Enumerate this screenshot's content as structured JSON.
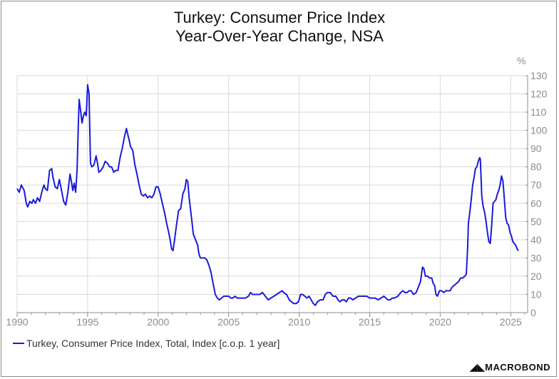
{
  "chart_data": {
    "type": "line",
    "title": "Turkey: Consumer Price Index",
    "subtitle": "Year-Over-Year Change, NSA",
    "ylabel": "%",
    "ylim": [
      0,
      130
    ],
    "yticks": [
      0,
      10,
      20,
      30,
      40,
      50,
      60,
      70,
      80,
      90,
      100,
      110,
      120,
      130
    ],
    "xlim": [
      1990,
      2026.2
    ],
    "xticks": [
      1990,
      1995,
      2000,
      2005,
      2010,
      2015,
      2020,
      2025
    ],
    "grid": true,
    "legend_position": "bottom-left",
    "series": [
      {
        "name": "Turkey, Consumer Price Index, Total, Index [c.o.p. 1 year]",
        "color": "#1a1adc",
        "points": [
          [
            1990.0,
            68
          ],
          [
            1990.15,
            66
          ],
          [
            1990.3,
            70
          ],
          [
            1990.5,
            67
          ],
          [
            1990.65,
            60
          ],
          [
            1990.75,
            58
          ],
          [
            1990.9,
            61
          ],
          [
            1991.05,
            60
          ],
          [
            1991.15,
            62
          ],
          [
            1991.3,
            60
          ],
          [
            1991.45,
            63
          ],
          [
            1991.6,
            61
          ],
          [
            1991.75,
            66
          ],
          [
            1991.9,
            70
          ],
          [
            1992.0,
            68
          ],
          [
            1992.15,
            67
          ],
          [
            1992.3,
            78
          ],
          [
            1992.45,
            79
          ],
          [
            1992.55,
            74
          ],
          [
            1992.7,
            69
          ],
          [
            1992.85,
            68
          ],
          [
            1993.0,
            73
          ],
          [
            1993.15,
            67
          ],
          [
            1993.3,
            61
          ],
          [
            1993.45,
            59
          ],
          [
            1993.6,
            66
          ],
          [
            1993.75,
            76
          ],
          [
            1993.85,
            72
          ],
          [
            1993.95,
            67
          ],
          [
            1994.05,
            71
          ],
          [
            1994.15,
            66
          ],
          [
            1994.25,
            78
          ],
          [
            1994.35,
            105
          ],
          [
            1994.4,
            117
          ],
          [
            1994.5,
            111
          ],
          [
            1994.6,
            104
          ],
          [
            1994.7,
            108
          ],
          [
            1994.8,
            110
          ],
          [
            1994.9,
            108
          ],
          [
            1995.0,
            125
          ],
          [
            1995.1,
            120
          ],
          [
            1995.2,
            82
          ],
          [
            1995.3,
            80
          ],
          [
            1995.45,
            81
          ],
          [
            1995.6,
            86
          ],
          [
            1995.7,
            82
          ],
          [
            1995.8,
            77
          ],
          [
            1995.95,
            78
          ],
          [
            1996.1,
            80
          ],
          [
            1996.25,
            83
          ],
          [
            1996.4,
            82
          ],
          [
            1996.55,
            80
          ],
          [
            1996.7,
            80
          ],
          [
            1996.85,
            77
          ],
          [
            1997.0,
            78
          ],
          [
            1997.15,
            78
          ],
          [
            1997.3,
            85
          ],
          [
            1997.45,
            90
          ],
          [
            1997.6,
            96
          ],
          [
            1997.75,
            101
          ],
          [
            1997.9,
            96
          ],
          [
            1998.05,
            91
          ],
          [
            1998.2,
            89
          ],
          [
            1998.35,
            81
          ],
          [
            1998.5,
            76
          ],
          [
            1998.65,
            70
          ],
          [
            1998.8,
            65
          ],
          [
            1998.95,
            64
          ],
          [
            1999.1,
            65
          ],
          [
            1999.25,
            63
          ],
          [
            1999.4,
            64
          ],
          [
            1999.55,
            63
          ],
          [
            1999.7,
            65
          ],
          [
            1999.85,
            69
          ],
          [
            2000.0,
            69
          ],
          [
            2000.15,
            65
          ],
          [
            2000.3,
            60
          ],
          [
            2000.45,
            55
          ],
          [
            2000.6,
            49
          ],
          [
            2000.75,
            44
          ],
          [
            2000.85,
            40
          ],
          [
            2000.95,
            35
          ],
          [
            2001.05,
            34
          ],
          [
            2001.15,
            39
          ],
          [
            2001.3,
            48
          ],
          [
            2001.45,
            56
          ],
          [
            2001.6,
            57
          ],
          [
            2001.75,
            65
          ],
          [
            2001.9,
            68
          ],
          [
            2002.0,
            73
          ],
          [
            2002.1,
            72
          ],
          [
            2002.2,
            63
          ],
          [
            2002.35,
            53
          ],
          [
            2002.5,
            43
          ],
          [
            2002.65,
            40
          ],
          [
            2002.8,
            37
          ],
          [
            2002.9,
            32
          ],
          [
            2003.0,
            30
          ],
          [
            2003.15,
            30
          ],
          [
            2003.3,
            30
          ],
          [
            2003.45,
            29
          ],
          [
            2003.6,
            26
          ],
          [
            2003.75,
            22
          ],
          [
            2003.85,
            18
          ],
          [
            2003.95,
            14
          ],
          [
            2004.05,
            10
          ],
          [
            2004.2,
            8
          ],
          [
            2004.35,
            7
          ],
          [
            2004.5,
            8
          ],
          [
            2004.65,
            9
          ],
          [
            2004.8,
            9
          ],
          [
            2005.0,
            9
          ],
          [
            2005.15,
            8
          ],
          [
            2005.3,
            8
          ],
          [
            2005.45,
            9
          ],
          [
            2005.6,
            8
          ],
          [
            2005.8,
            8
          ],
          [
            2006.0,
            8
          ],
          [
            2006.2,
            8
          ],
          [
            2006.4,
            9
          ],
          [
            2006.55,
            11
          ],
          [
            2006.7,
            10
          ],
          [
            2006.85,
            10
          ],
          [
            2007.0,
            10
          ],
          [
            2007.2,
            10
          ],
          [
            2007.4,
            11
          ],
          [
            2007.6,
            9
          ],
          [
            2007.8,
            7
          ],
          [
            2008.0,
            8
          ],
          [
            2008.2,
            9
          ],
          [
            2008.4,
            10
          ],
          [
            2008.6,
            11
          ],
          [
            2008.8,
            12
          ],
          [
            2008.9,
            11
          ],
          [
            2009.1,
            10
          ],
          [
            2009.3,
            7
          ],
          [
            2009.45,
            6
          ],
          [
            2009.6,
            5
          ],
          [
            2009.8,
            5
          ],
          [
            2009.95,
            6
          ],
          [
            2010.1,
            10
          ],
          [
            2010.25,
            10
          ],
          [
            2010.4,
            9
          ],
          [
            2010.55,
            8
          ],
          [
            2010.7,
            9
          ],
          [
            2010.85,
            7
          ],
          [
            2011.0,
            5
          ],
          [
            2011.15,
            4
          ],
          [
            2011.3,
            6
          ],
          [
            2011.5,
            7
          ],
          [
            2011.7,
            7
          ],
          [
            2011.85,
            10
          ],
          [
            2012.0,
            11
          ],
          [
            2012.2,
            11
          ],
          [
            2012.4,
            9
          ],
          [
            2012.6,
            9
          ],
          [
            2012.75,
            7
          ],
          [
            2012.9,
            6
          ],
          [
            2013.05,
            7
          ],
          [
            2013.2,
            7
          ],
          [
            2013.35,
            6
          ],
          [
            2013.5,
            8
          ],
          [
            2013.65,
            8
          ],
          [
            2013.8,
            7
          ],
          [
            2014.0,
            8
          ],
          [
            2014.2,
            9
          ],
          [
            2014.4,
            9
          ],
          [
            2014.6,
            9
          ],
          [
            2014.8,
            9
          ],
          [
            2015.0,
            8
          ],
          [
            2015.2,
            8
          ],
          [
            2015.4,
            8
          ],
          [
            2015.6,
            7
          ],
          [
            2015.8,
            8
          ],
          [
            2016.0,
            9
          ],
          [
            2016.15,
            8
          ],
          [
            2016.3,
            7
          ],
          [
            2016.45,
            7
          ],
          [
            2016.6,
            8
          ],
          [
            2016.75,
            8
          ],
          [
            2017.0,
            9
          ],
          [
            2017.2,
            11
          ],
          [
            2017.35,
            12
          ],
          [
            2017.5,
            11
          ],
          [
            2017.65,
            11
          ],
          [
            2017.8,
            12
          ],
          [
            2017.95,
            12
          ],
          [
            2018.1,
            10
          ],
          [
            2018.3,
            11
          ],
          [
            2018.5,
            15
          ],
          [
            2018.6,
            17
          ],
          [
            2018.75,
            25
          ],
          [
            2018.85,
            24
          ],
          [
            2018.95,
            20
          ],
          [
            2019.1,
            20
          ],
          [
            2019.25,
            19
          ],
          [
            2019.4,
            19
          ],
          [
            2019.5,
            16
          ],
          [
            2019.6,
            15
          ],
          [
            2019.7,
            10
          ],
          [
            2019.8,
            9
          ],
          [
            2019.95,
            12
          ],
          [
            2020.1,
            12
          ],
          [
            2020.25,
            11
          ],
          [
            2020.4,
            12
          ],
          [
            2020.55,
            12
          ],
          [
            2020.7,
            12
          ],
          [
            2020.85,
            14
          ],
          [
            2021.0,
            15
          ],
          [
            2021.15,
            16
          ],
          [
            2021.3,
            17
          ],
          [
            2021.45,
            19
          ],
          [
            2021.6,
            19
          ],
          [
            2021.75,
            20
          ],
          [
            2021.85,
            21
          ],
          [
            2021.95,
            36
          ],
          [
            2022.0,
            49
          ],
          [
            2022.1,
            55
          ],
          [
            2022.2,
            62
          ],
          [
            2022.3,
            70
          ],
          [
            2022.4,
            74
          ],
          [
            2022.5,
            79
          ],
          [
            2022.6,
            80
          ],
          [
            2022.7,
            83
          ],
          [
            2022.8,
            85
          ],
          [
            2022.85,
            84
          ],
          [
            2022.95,
            64
          ],
          [
            2023.05,
            58
          ],
          [
            2023.15,
            55
          ],
          [
            2023.25,
            50
          ],
          [
            2023.35,
            44
          ],
          [
            2023.45,
            39
          ],
          [
            2023.55,
            38
          ],
          [
            2023.65,
            48
          ],
          [
            2023.75,
            60
          ],
          [
            2023.85,
            61
          ],
          [
            2023.95,
            62
          ],
          [
            2024.05,
            65
          ],
          [
            2024.15,
            67
          ],
          [
            2024.25,
            70
          ],
          [
            2024.35,
            75
          ],
          [
            2024.45,
            72
          ],
          [
            2024.55,
            62
          ],
          [
            2024.65,
            52
          ],
          [
            2024.75,
            49
          ],
          [
            2024.85,
            48
          ],
          [
            2024.95,
            44
          ],
          [
            2025.05,
            42
          ],
          [
            2025.15,
            39
          ],
          [
            2025.25,
            38
          ],
          [
            2025.35,
            37
          ],
          [
            2025.45,
            35
          ],
          [
            2025.55,
            34
          ]
        ]
      }
    ]
  },
  "brand": "MACROBOND"
}
